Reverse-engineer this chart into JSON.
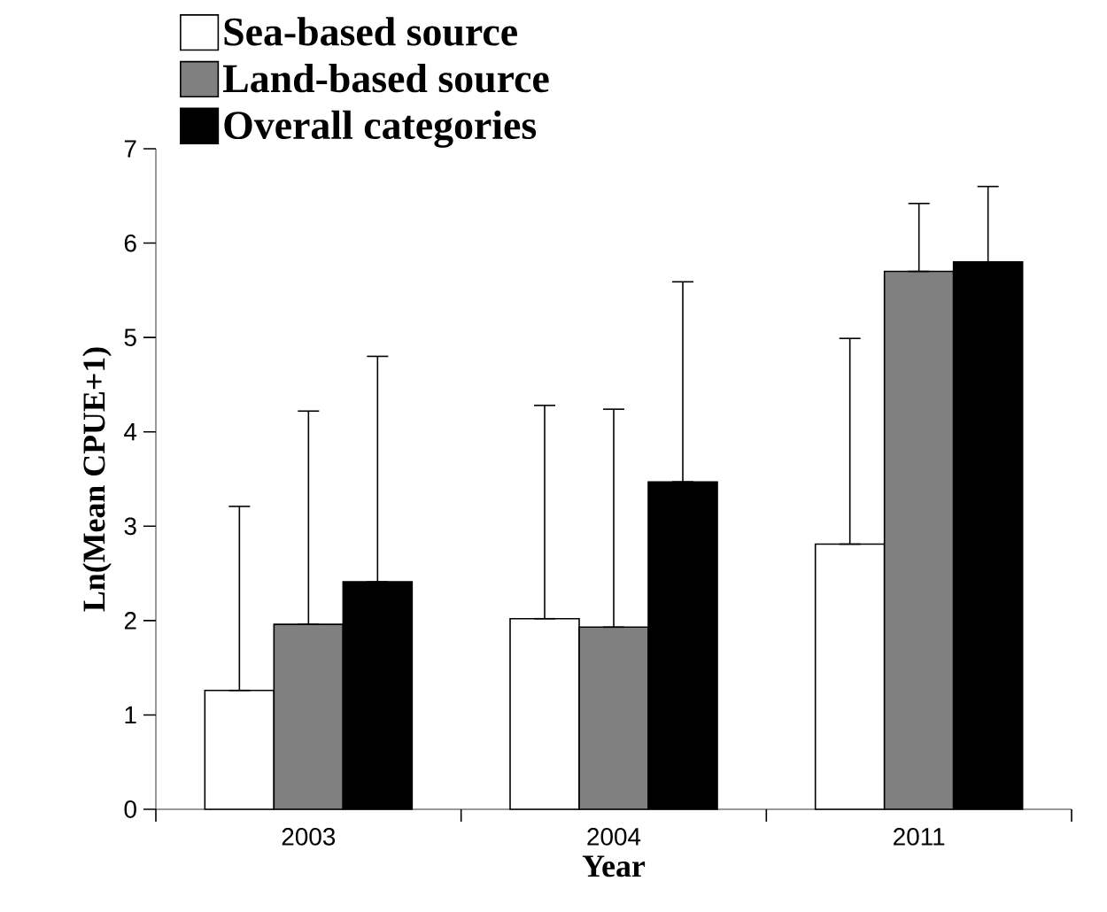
{
  "chart_data": {
    "type": "bar",
    "xlabel": "Year",
    "ylabel": "Ln(Mean CPUE+1)",
    "categories": [
      "2003",
      "2004",
      "2011"
    ],
    "series": [
      {
        "name": "Sea-based  source",
        "color": "#ffffff",
        "values": [
          1.26,
          2.02,
          2.81
        ],
        "errors": [
          [
            1.26,
            3.21
          ],
          [
            2.02,
            4.28
          ],
          [
            2.81,
            4.99
          ]
        ]
      },
      {
        "name": "Land-based source",
        "color": "#808080",
        "values": [
          1.96,
          1.93,
          5.7
        ],
        "errors": [
          [
            1.96,
            4.22
          ],
          [
            1.93,
            4.24
          ],
          [
            5.7,
            6.42
          ]
        ]
      },
      {
        "name": "Overall categories",
        "color": "#000000",
        "values": [
          2.41,
          3.47,
          5.8
        ],
        "errors": [
          [
            2.41,
            4.8
          ],
          [
            3.47,
            5.59
          ],
          [
            5.8,
            6.6
          ]
        ]
      }
    ],
    "ylim": [
      0,
      7
    ],
    "yticks": [
      0,
      1,
      2,
      3,
      4,
      5,
      6,
      7
    ],
    "grid": false,
    "legend": "top left"
  }
}
